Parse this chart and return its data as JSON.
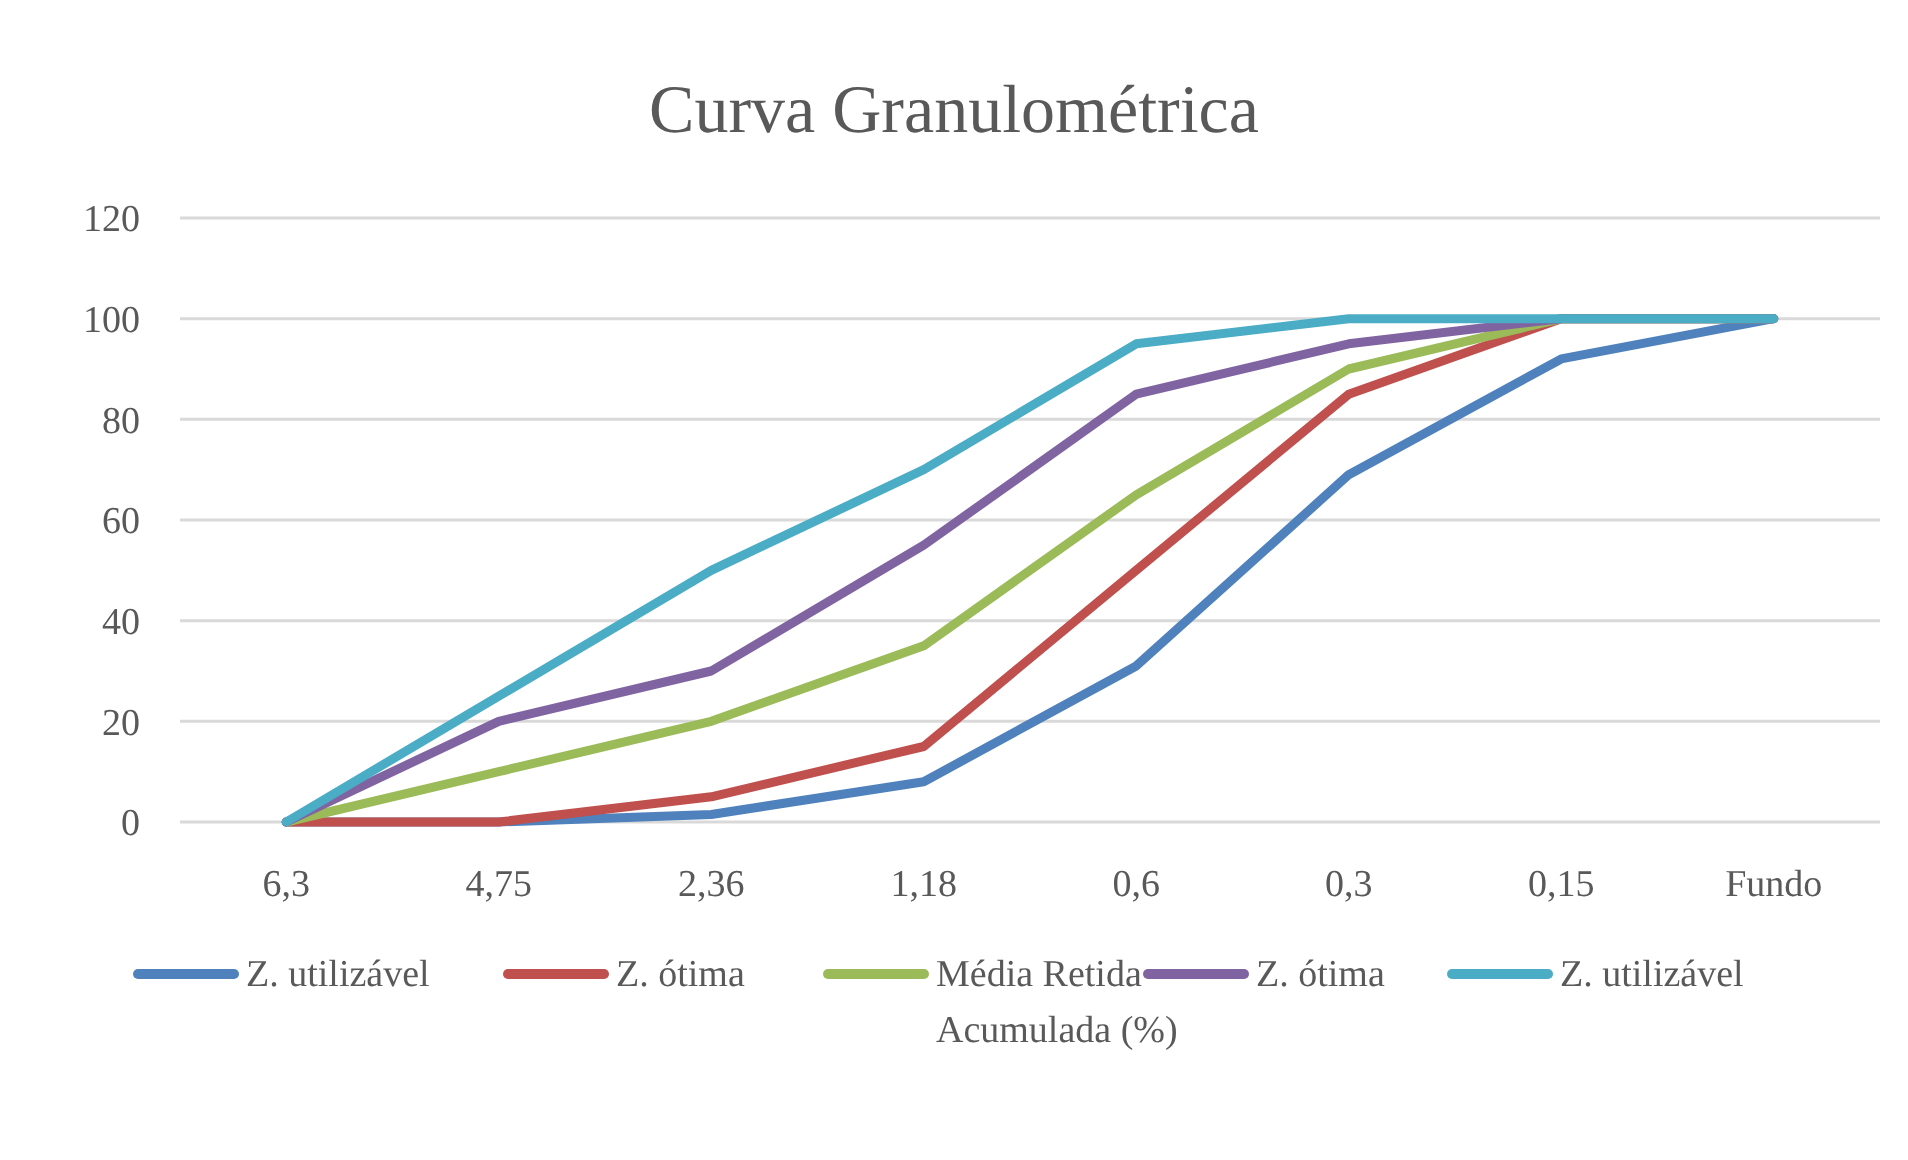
{
  "chart_data": {
    "type": "line",
    "title": "Curva Granulométrica",
    "categories": [
      "6,3",
      "4,75",
      "2,36",
      "1,18",
      "0,6",
      "0,3",
      "0,15",
      "Fundo"
    ],
    "series": [
      {
        "name": "Z. utilizável",
        "color": "#4f81bd",
        "values": [
          0,
          0,
          1.5,
          8,
          31,
          69,
          92,
          100
        ]
      },
      {
        "name": "Z. ótima",
        "color": "#c0504d",
        "values": [
          0,
          0,
          5,
          15,
          50,
          85,
          100,
          100
        ]
      },
      {
        "name": "Média Retida Acumulada (%)",
        "color": "#9bbb59",
        "values": [
          0,
          10,
          20,
          35,
          65,
          90,
          100,
          100
        ]
      },
      {
        "name": "Z. ótima",
        "color": "#8064a2",
        "values": [
          0,
          20,
          30,
          55,
          85,
          95,
          100,
          100
        ]
      },
      {
        "name": "Z. utilizável",
        "color": "#4bacc6",
        "values": [
          0,
          25,
          50,
          70,
          95,
          100,
          100,
          100
        ]
      }
    ],
    "ylim": [
      0,
      120
    ],
    "yticks": [
      0,
      20,
      40,
      60,
      80,
      100,
      120
    ],
    "grid": "y",
    "legend": "bottom",
    "marker": "none",
    "line_style": "solid"
  }
}
